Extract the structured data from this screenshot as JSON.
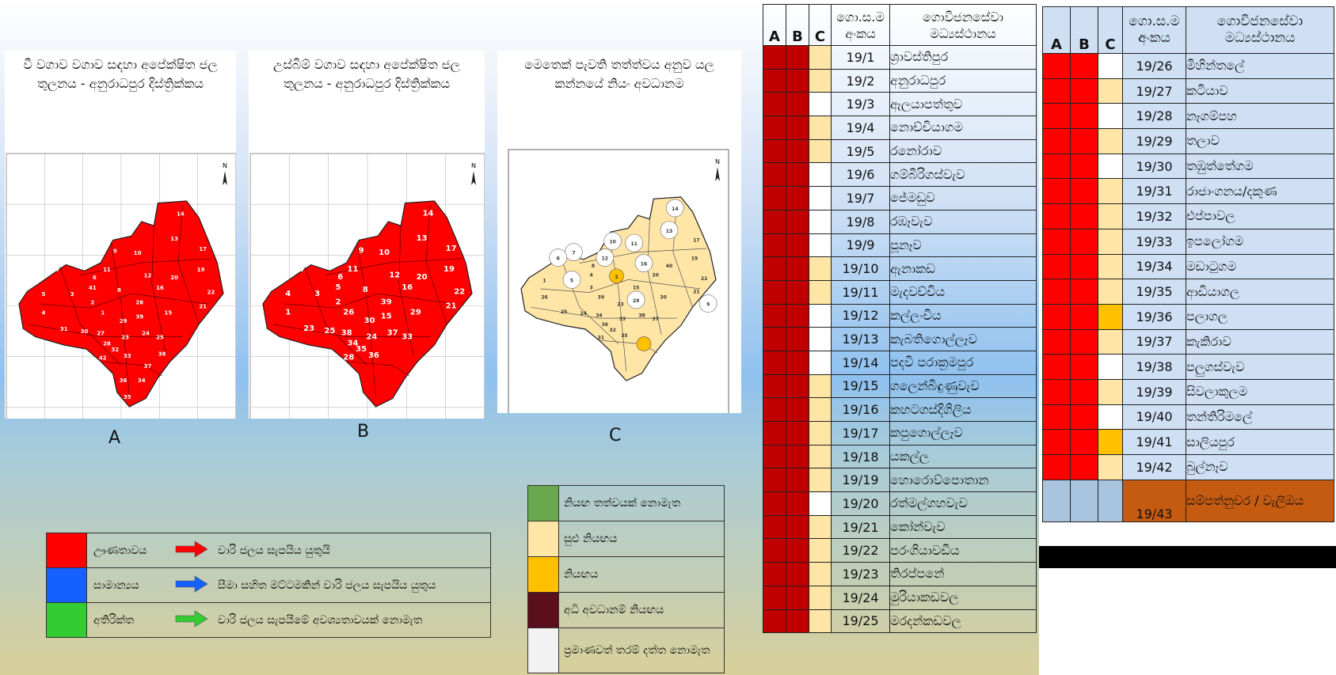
{
  "colors": {
    "deficit": "#ff0000",
    "normal": "#1560ff",
    "surplus": "#33cc33",
    "no_threat": "#6aa84f",
    "mild_threat": "#ffe5a6",
    "threat": "#ffc000",
    "high_risk": "#5b0f1b",
    "no_data": "#f2f2f2",
    "map_red": "#ff0000",
    "table_red": "#c00000",
    "right_red": "#ff0000",
    "highlight": "#c55a11"
  },
  "maps": [
    {
      "title": "වී වගාව වගාව සඳහා අපේක්ෂිත ජල තුලනය - අනුරාධපුර දිස්ත්‍රික්කය",
      "letter": "A",
      "style": "red"
    },
    {
      "title": "උස්බිම් වගාව සඳහා අපේක්ෂිත ජල තුලනය - අනුරාධපුර දිස්ත්‍රික්කය",
      "letter": "B",
      "style": "red"
    },
    {
      "title": "මෙතෙක් පැවති තත්ත්වය අනුව යල කන්නයේ නියං අවධානම",
      "letter": "C",
      "style": "risk"
    }
  ],
  "legend_balance": [
    {
      "category": "ඌණතාවය",
      "color": "deficit",
      "arrow": "red-arrow-icon",
      "text": "වාරි ජලය සැපයිය යුතුයි"
    },
    {
      "category": "සාමාන්‍යය",
      "color": "normal",
      "arrow": "blue-arrow-icon",
      "text": "සීමා සහිත මට්ටමකින් වාරි ජලය සැපයිය යුතුය"
    },
    {
      "category": "අතිරික්ත",
      "color": "surplus",
      "arrow": "green-arrow-icon",
      "text": "වාරි ජලය සැපයීමේ අවශ්‍යතාවයක් නොමැත"
    }
  ],
  "legend_risk": [
    {
      "color": "no_threat",
      "text": "නියඟ තත්වයක් නොමැත"
    },
    {
      "color": "mild_threat",
      "text": "සුළු නියඟය"
    },
    {
      "color": "threat",
      "text": "නියඟය"
    },
    {
      "color": "high_risk",
      "text": "අධි අවධානම් නියඟය"
    },
    {
      "color": "no_data",
      "text": "ප්‍රමාණවත් තරම් දත්ත නොමැත"
    }
  ],
  "table_headers": {
    "a": "A",
    "b": "B",
    "c": "C",
    "code": "ගො.ස.ම අංකය",
    "name": "ගොවිජනසේවා මධ්‍යස්ථානය"
  },
  "table_left": [
    {
      "code": "19/1",
      "name": "ශ්‍රාවස්තිපුර",
      "c": "mild"
    },
    {
      "code": "19/2",
      "name": "අනුරාධපුර",
      "c": "mild"
    },
    {
      "code": "19/3",
      "name": "ඇලයාපත්තුව",
      "c": "none"
    },
    {
      "code": "19/4",
      "name": "නොච්චියාගම",
      "c": "mild"
    },
    {
      "code": "19/5",
      "name": "රනෝරාව",
      "c": "mild"
    },
    {
      "code": "19/6",
      "name": "ගම්බිරිගස්වැව",
      "c": "none"
    },
    {
      "code": "19/7",
      "name": "ජේමඩුව",
      "c": "none"
    },
    {
      "code": "19/8",
      "name": "රඹෑවැව",
      "c": "none"
    },
    {
      "code": "19/9",
      "name": "පූනෑව",
      "c": "none"
    },
    {
      "code": "19/10",
      "name": "ඇනාකඩ",
      "c": "mild"
    },
    {
      "code": "19/11",
      "name": "මැදවච්චිය",
      "c": "mild"
    },
    {
      "code": "19/12",
      "name": "කල්ලංචිය",
      "c": "none"
    },
    {
      "code": "19/13",
      "name": "කැබතිගොල්ලෑව",
      "c": "none"
    },
    {
      "code": "19/14",
      "name": "පදවි පරාක්‍රමපුර",
      "c": "none"
    },
    {
      "code": "19/15",
      "name": "ගලෙන්බිඳුණුවැව",
      "c": "mild"
    },
    {
      "code": "19/16",
      "name": "කහටගස්දිගිලිය",
      "c": "mild"
    },
    {
      "code": "19/17",
      "name": "කපුගොල්ලෑව",
      "c": "mild"
    },
    {
      "code": "19/18",
      "name": "යකල්ල",
      "c": "mild"
    },
    {
      "code": "19/19",
      "name": "හොරොව්පොතාන",
      "c": "mild"
    },
    {
      "code": "19/20",
      "name": "රත්මල්ගහවැව",
      "c": "none"
    },
    {
      "code": "19/21",
      "name": "කෝන්වැව",
      "c": "mild"
    },
    {
      "code": "19/22",
      "name": "පරංගියාවඩිය",
      "c": "mild"
    },
    {
      "code": "19/23",
      "name": "තිරප්පනේ",
      "c": "mild"
    },
    {
      "code": "19/24",
      "name": "මුරියාකඩවල",
      "c": "mild"
    },
    {
      "code": "19/25",
      "name": "මරදන්කඩවල",
      "c": "mild"
    }
  ],
  "table_right": [
    {
      "code": "19/26",
      "name": "මිහින්තලේ",
      "c": "none"
    },
    {
      "code": "19/27",
      "name": "කටියාව",
      "c": "mild"
    },
    {
      "code": "19/28",
      "name": "නෑගම්පහ",
      "c": "none"
    },
    {
      "code": "19/29",
      "name": "තලාව",
      "c": "mild"
    },
    {
      "code": "19/30",
      "name": "තඹුත්තේගම",
      "c": "none"
    },
    {
      "code": "19/31",
      "name": "රාජාංගනය/දකුණ",
      "c": "mild"
    },
    {
      "code": "19/32",
      "name": "එප්පාවල",
      "c": "mild"
    },
    {
      "code": "19/33",
      "name": "ඉපලෝගම",
      "c": "mild"
    },
    {
      "code": "19/34",
      "name": "මඩාටුගම",
      "c": "mild"
    },
    {
      "code": "19/35",
      "name": "ආඩියාගල",
      "c": "mild"
    },
    {
      "code": "19/36",
      "name": "පලාගල",
      "c": "threat"
    },
    {
      "code": "19/37",
      "name": "කැකිරාව",
      "c": "mild"
    },
    {
      "code": "19/38",
      "name": "පලුගස්වැව",
      "c": "none"
    },
    {
      "code": "19/39",
      "name": "සිවලාකුලම",
      "c": "mild"
    },
    {
      "code": "19/40",
      "name": "තන්තිරිමලේ",
      "c": "none"
    },
    {
      "code": "19/41",
      "name": "සාලියපුර",
      "c": "threat"
    },
    {
      "code": "19/42",
      "name": "බුල්නෑව",
      "c": "mild"
    },
    {
      "code": "19/43",
      "name": "සම්පත්නුවර / වැලිඔය",
      "c": "none"
    }
  ],
  "map_labels_a": [
    "14",
    "13",
    "17",
    "19",
    "22",
    "21",
    "18",
    "9",
    "10",
    "11",
    "12",
    "16",
    "20",
    "40",
    "7",
    "6",
    "8",
    "2",
    "3",
    "41",
    "5",
    "4",
    "1",
    "26",
    "39",
    "15",
    "29",
    "31",
    "30",
    "23",
    "25",
    "24",
    "27",
    "28",
    "33",
    "32",
    "42",
    "37",
    "38",
    "34",
    "36",
    "35"
  ],
  "map_labels_b": [
    "14",
    "13",
    "17",
    "19",
    "22",
    "21",
    "18",
    "9",
    "10",
    "11",
    "12",
    "16",
    "20",
    "40",
    "7",
    "6",
    "8",
    "2",
    "3",
    "5",
    "4",
    "1",
    "26",
    "39",
    "15",
    "29",
    "30",
    "23",
    "25",
    "24",
    "33",
    "37",
    "38",
    "34",
    "36",
    "35",
    "28"
  ],
  "map_labels_c": [
    "14",
    "13",
    "17",
    "19",
    "22",
    "21",
    "9",
    "10",
    "11",
    "12",
    "16",
    "20",
    "40",
    "7",
    "6",
    "8",
    "2",
    "3",
    "5",
    "4",
    "1",
    "26",
    "39",
    "15",
    "29",
    "30",
    "23",
    "25",
    "24",
    "33",
    "37",
    "38",
    "34",
    "36",
    "35",
    "32",
    "31"
  ],
  "north_label": "N"
}
